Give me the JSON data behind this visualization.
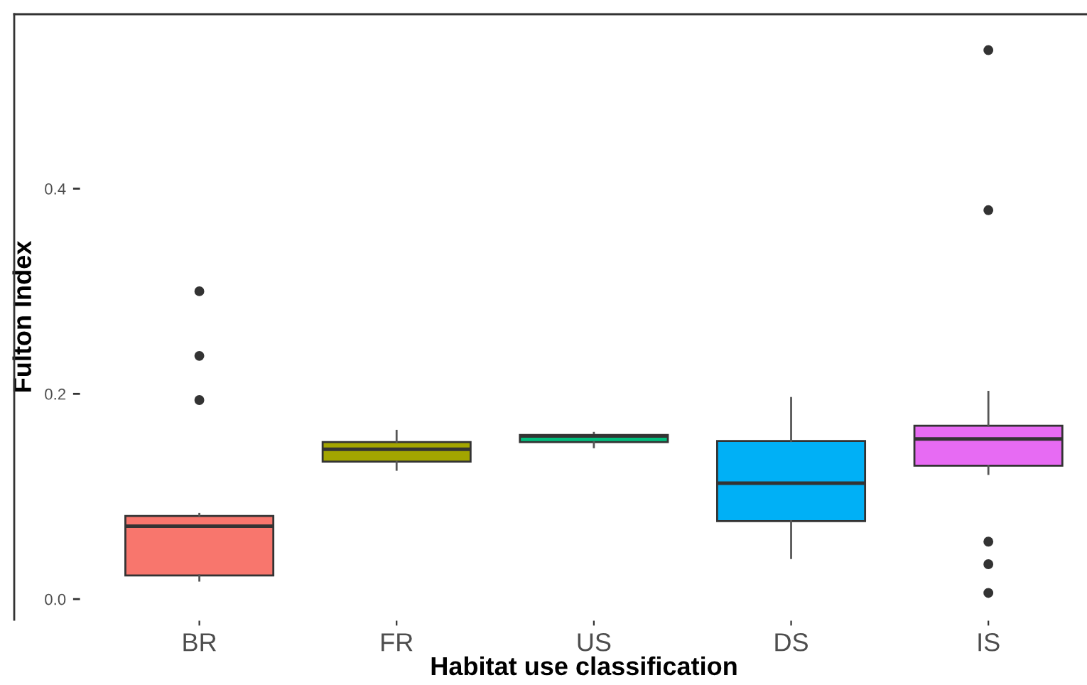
{
  "chart_data": {
    "type": "box",
    "xlabel": "Habitat use classification",
    "ylabel": "Fulton Index",
    "categories": [
      "BR",
      "FR",
      "US",
      "DS",
      "IS"
    ],
    "colors": [
      "#f8766d",
      "#a3a500",
      "#00bf7d",
      "#00b0f6",
      "#e76bf3"
    ],
    "boxes": [
      {
        "low": 0.018,
        "q1": 0.023,
        "median": 0.071,
        "q3": 0.081,
        "high": 0.083,
        "outliers": [
          0.194,
          0.237,
          0.3
        ]
      },
      {
        "low": 0.126,
        "q1": 0.134,
        "median": 0.146,
        "q3": 0.153,
        "high": 0.164
      },
      {
        "low": 0.148,
        "q1": 0.153,
        "median": 0.159,
        "q3": 0.16,
        "high": 0.162
      },
      {
        "low": 0.04,
        "q1": 0.076,
        "median": 0.113,
        "q3": 0.154,
        "high": 0.196
      },
      {
        "low": 0.122,
        "q1": 0.13,
        "median": 0.156,
        "q3": 0.169,
        "high": 0.202,
        "outliers": [
          0.535,
          0.379,
          0.056,
          0.034,
          0.006
        ]
      }
    ],
    "ylim": [
      -0.02,
      0.57
    ],
    "yticks": [
      {
        "value": 0.0,
        "label": "0.0"
      },
      {
        "value": 0.2,
        "label": "0.2"
      },
      {
        "value": 0.4,
        "label": "0.4"
      }
    ],
    "grid": false,
    "legend": false
  }
}
